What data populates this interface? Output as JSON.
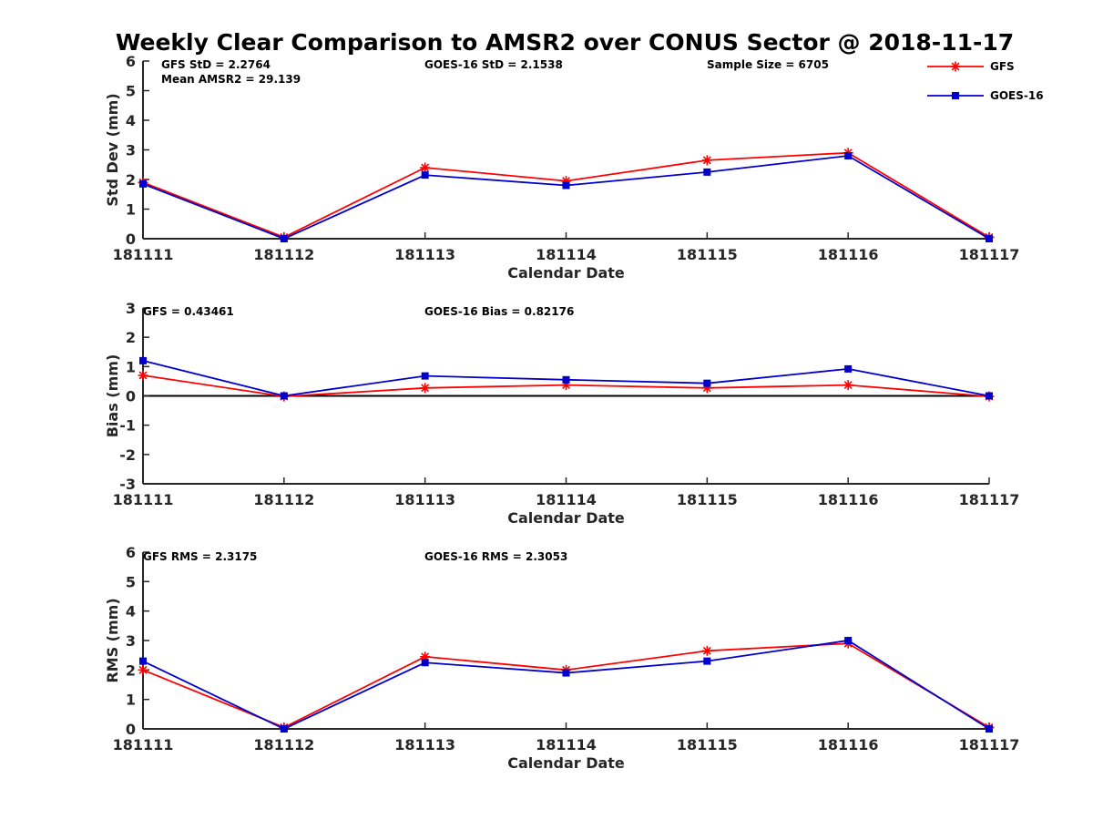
{
  "chart_data": {
    "title": "Weekly Clear Comparison to AMSR2 over CONUS Sector @ 2018-11-17",
    "legend": {
      "placement": "top-right",
      "entries": [
        {
          "name": "GFS",
          "color": "#ff0000",
          "marker": "asterisk"
        },
        {
          "name": "GOES-16",
          "color": "#0000cc",
          "marker": "square"
        }
      ]
    },
    "panels": [
      {
        "type": "line",
        "categories": [
          "181111",
          "181112",
          "181113",
          "181114",
          "181115",
          "181116",
          "181117"
        ],
        "xlabel": "Calendar Date",
        "ylabel": "Std Dev (mm)",
        "ylim": [
          0,
          6
        ],
        "yticks": [
          "0",
          "1",
          "2",
          "3",
          "4",
          "5",
          "6"
        ],
        "grid": false,
        "zero_line": false,
        "annotations": [
          "GFS StD = 2.2764",
          "Mean AMSR2 = 29.139",
          "GOES-16 StD = 2.1538",
          "Sample Size = 6705"
        ],
        "series": [
          {
            "name": "GFS",
            "values": [
              1.9,
              0.05,
              2.4,
              1.95,
              2.65,
              2.9,
              0.05
            ]
          },
          {
            "name": "GOES-16",
            "values": [
              1.85,
              0.0,
              2.15,
              1.8,
              2.25,
              2.8,
              0.0
            ]
          }
        ]
      },
      {
        "type": "line",
        "categories": [
          "181111",
          "181112",
          "181113",
          "181114",
          "181115",
          "181116",
          "181117"
        ],
        "xlabel": "Calendar Date",
        "ylabel": "Bias (mm)",
        "ylim": [
          -3,
          3
        ],
        "yticks": [
          "-3",
          "-2",
          "-1",
          "0",
          "1",
          "2",
          "3"
        ],
        "grid": false,
        "zero_line": true,
        "annotations": [
          "GFS = 0.43461",
          "GOES-16 Bias  = 0.82176"
        ],
        "series": [
          {
            "name": "GFS",
            "values": [
              0.7,
              -0.02,
              0.27,
              0.37,
              0.27,
              0.37,
              -0.02
            ]
          },
          {
            "name": "GOES-16",
            "values": [
              1.2,
              0.0,
              0.68,
              0.55,
              0.43,
              0.92,
              0.0
            ]
          }
        ]
      },
      {
        "type": "line",
        "categories": [
          "181111",
          "181112",
          "181113",
          "181114",
          "181115",
          "181116",
          "181117"
        ],
        "xlabel": "Calendar Date",
        "ylabel": "RMS (mm)",
        "ylim": [
          0,
          6
        ],
        "yticks": [
          "0",
          "1",
          "2",
          "3",
          "4",
          "5",
          "6"
        ],
        "grid": false,
        "zero_line": false,
        "annotations": [
          "GFS RMS = 2.3175",
          "GOES-16 RMS = 2.3053"
        ],
        "series": [
          {
            "name": "GFS",
            "values": [
              2.0,
              0.05,
              2.45,
              2.0,
              2.65,
              2.9,
              0.05
            ]
          },
          {
            "name": "GOES-16",
            "values": [
              2.3,
              0.0,
              2.25,
              1.9,
              2.3,
              3.0,
              0.0
            ]
          }
        ]
      }
    ]
  }
}
